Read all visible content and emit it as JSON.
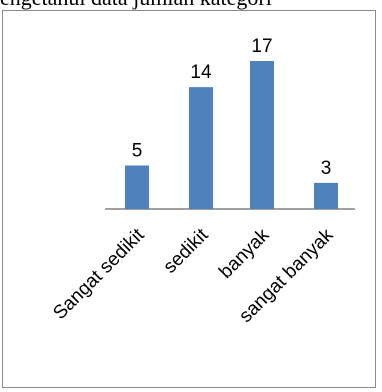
{
  "caption": "engetahui data jumlah kategori",
  "chart_data": {
    "type": "bar",
    "categories": [
      "Sangat sedikit",
      "sedikit",
      "banyak",
      "sangat banyak"
    ],
    "values": [
      5,
      14,
      17,
      3
    ],
    "ylim": [
      0,
      17
    ],
    "grid": false,
    "bar_color": "#4f81bd",
    "axis_color": "#808080"
  }
}
